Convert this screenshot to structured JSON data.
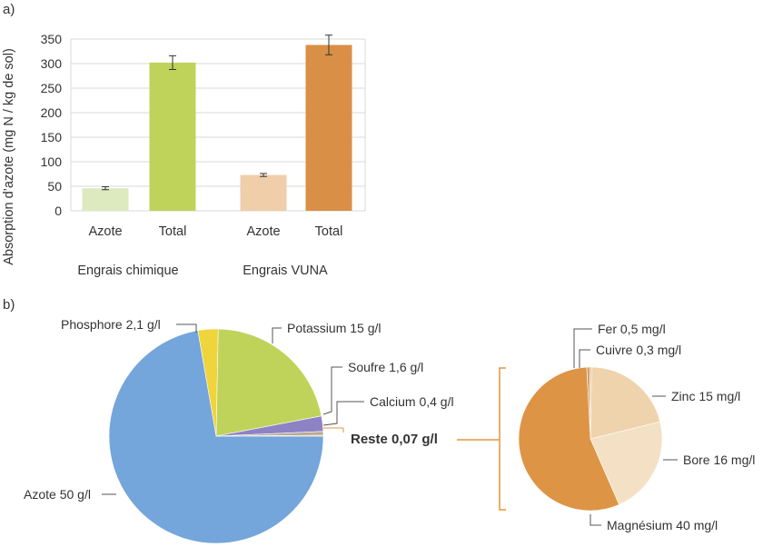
{
  "panel_a_label": "a)",
  "panel_b_label": "b)",
  "chart_data": [
    {
      "type": "bar",
      "ylabel": "Absorption d’azote (mg N / kg de sol)",
      "ylim": [
        0,
        350
      ],
      "yticks": [
        "0",
        "50",
        "100",
        "150",
        "200",
        "250",
        "300",
        "350"
      ],
      "grid": true,
      "groups": [
        {
          "name": "Engrais chimique",
          "bars": [
            {
              "label": "Azote",
              "value": 46,
              "error": 3,
              "color": "#dde9bf"
            },
            {
              "label": "Total",
              "value": 302,
              "error": 14,
              "color": "#bfd35a"
            }
          ]
        },
        {
          "name": "Engrais VUNA",
          "bars": [
            {
              "label": "Azote",
              "value": 73,
              "error": 3,
              "color": "#f0ceaa"
            },
            {
              "label": "Total",
              "value": 338,
              "error": 20,
              "color": "#d98f45"
            }
          ]
        }
      ]
    },
    {
      "type": "pie",
      "unit": "g/l",
      "slices": [
        {
          "label": "Azote 50 g/l",
          "value": 50,
          "color": "#74a5db"
        },
        {
          "label": "Phosphore 2,1 g/l",
          "value": 2.1,
          "color": "#efd43c"
        },
        {
          "label": "Potassium 15 g/l",
          "value": 15,
          "color": "#bfd35a"
        },
        {
          "label": "Soufre 1,6 g/l",
          "value": 1.6,
          "color": "#8d83c4"
        },
        {
          "label": "Calcium 0,4 g/l",
          "value": 0.4,
          "color": "#b9a995"
        },
        {
          "label": "Reste 0,07 g/l",
          "value": 0.07,
          "color": "#e0963e"
        }
      ],
      "highlight_label": "Reste 0,07 g/l",
      "highlight_color": "#e0963e"
    },
    {
      "type": "pie",
      "unit": "mg/l",
      "slices": [
        {
          "label": "Fer 0,5 mg/l",
          "value": 0.5,
          "color": "#d0a36b"
        },
        {
          "label": "Cuivre 0,3 mg/l",
          "value": 0.3,
          "color": "#e3bb8a"
        },
        {
          "label": "Zinc 15 mg/l",
          "value": 15,
          "color": "#eed3ad"
        },
        {
          "label": "Bore 16 mg/l",
          "value": 16,
          "color": "#f4e1c5"
        },
        {
          "label": "Magnésium 40 mg/l",
          "value": 40,
          "color": "#dd9445"
        }
      ]
    }
  ]
}
